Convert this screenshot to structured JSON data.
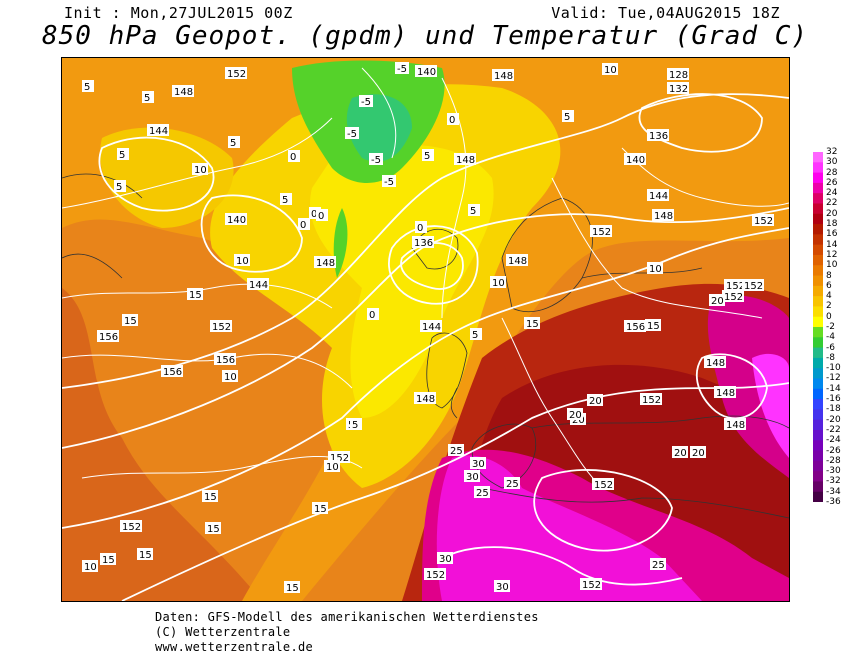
{
  "header": {
    "init": "Init : Mon,27JUL2015 00Z",
    "valid": "Valid: Tue,04AUG2015 18Z",
    "title": "850 hPa Geopot. (gpdm) und Temperatur (Grad C)"
  },
  "footer": {
    "line1": "Daten: GFS-Modell des amerikanischen Wetterdienstes",
    "line2": "(C) Wetterzentrale",
    "line3": "www.wetterzentrale.de"
  },
  "colorbar": {
    "labels": [
      "32",
      "30",
      "28",
      "26",
      "24",
      "22",
      "20",
      "18",
      "16",
      "14",
      "12",
      "10",
      "8",
      "6",
      "4",
      "2",
      "0",
      "-2",
      "-4",
      "-6",
      "-8",
      "-10",
      "-12",
      "-14",
      "-16",
      "-18",
      "-20",
      "-22",
      "-24",
      "-26",
      "-28",
      "-30",
      "-32",
      "-34",
      "-36"
    ],
    "colors": [
      "#ff66ff",
      "#ff33ff",
      "#ff00ee",
      "#ee00aa",
      "#dd0066",
      "#c80030",
      "#b00010",
      "#b41a00",
      "#c43200",
      "#d44a00",
      "#e06200",
      "#ea7a00",
      "#f09000",
      "#f5aa00",
      "#f8c400",
      "#fbde00",
      "#ffff00",
      "#66dd22",
      "#33cc33",
      "#22bb88",
      "#00aaaa",
      "#0099cc",
      "#0088ee",
      "#0066ff",
      "#3344ff",
      "#4433ee",
      "#5522dd",
      "#6611cc",
      "#7700bb",
      "#7a00aa",
      "#7e0099",
      "#820088",
      "#660066",
      "#440044"
    ]
  },
  "map": {
    "geopotential_labels": [
      "152",
      "148",
      "140",
      "148",
      "128",
      "132",
      "136",
      "140",
      "144",
      "148",
      "152",
      "144",
      "140",
      "148",
      "136",
      "148",
      "144",
      "152",
      "156",
      "156",
      "156",
      "152",
      "148",
      "152",
      "156",
      "152",
      "152",
      "148",
      "148",
      "148",
      "152",
      "152",
      "152",
      "152",
      "152",
      "152",
      "144",
      "148"
    ],
    "temperature_labels": [
      "-5",
      "5",
      "5",
      "-5",
      "5",
      "-5",
      "-5",
      "0",
      "10",
      "5",
      "0",
      "5",
      "0",
      "0",
      "0",
      "5",
      "10",
      "10",
      "15",
      "15",
      "10",
      "15",
      "15",
      "20",
      "20",
      "20",
      "20",
      "25",
      "30",
      "30",
      "25",
      "25",
      "20",
      "25",
      "30",
      "30",
      "20",
      "5",
      "10",
      "15",
      "15",
      "15",
      "15",
      "15",
      "10",
      "15",
      "5",
      "10",
      "5",
      "0",
      "5",
      "-5",
      "0",
      "5",
      "5",
      "10"
    ]
  }
}
